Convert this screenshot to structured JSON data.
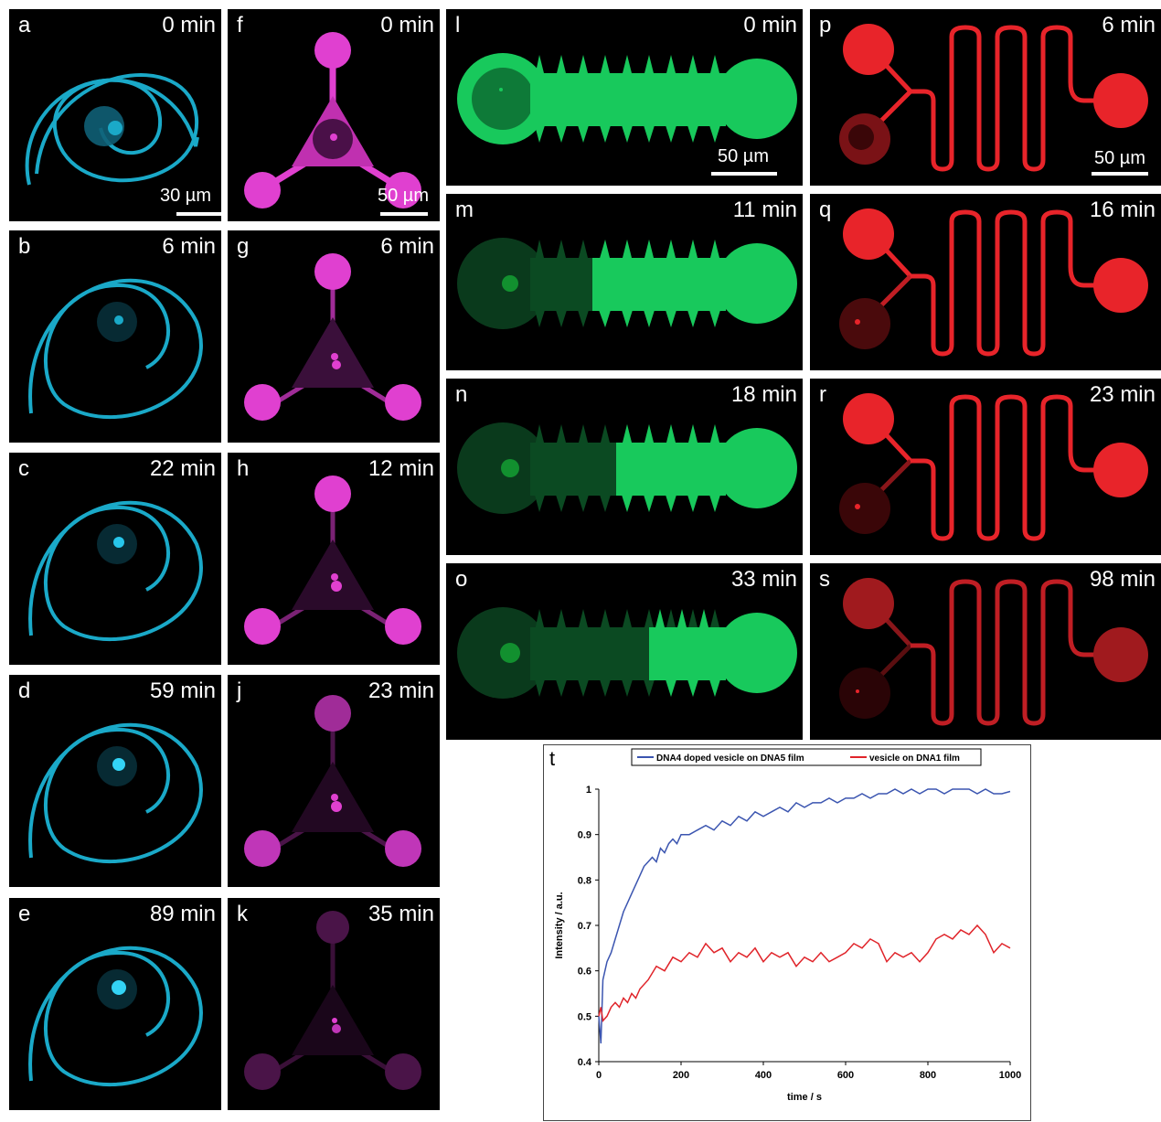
{
  "panels": {
    "a": {
      "label": "a",
      "time": "0 min",
      "scale": "30 µm"
    },
    "b": {
      "label": "b",
      "time": "6 min"
    },
    "c": {
      "label": "c",
      "time": "22 min"
    },
    "d": {
      "label": "d",
      "time": "59 min"
    },
    "e": {
      "label": "e",
      "time": "89 min"
    },
    "f": {
      "label": "f",
      "time": "0 min",
      "scale": "50 µm"
    },
    "g": {
      "label": "g",
      "time": "6 min"
    },
    "h": {
      "label": "h",
      "time": "12 min"
    },
    "j": {
      "label": "j",
      "time": "23 min"
    },
    "k": {
      "label": "k",
      "time": "35 min"
    },
    "l": {
      "label": "l",
      "time": "0 min",
      "scale": "50 µm"
    },
    "m": {
      "label": "m",
      "time": "11 min"
    },
    "n": {
      "label": "n",
      "time": "18 min"
    },
    "o": {
      "label": "o",
      "time": "33 min"
    },
    "p": {
      "label": "p",
      "time": "6 min",
      "scale": "50 µm"
    },
    "q": {
      "label": "q",
      "time": "16 min"
    },
    "r": {
      "label": "r",
      "time": "23 min"
    },
    "s": {
      "label": "s",
      "time": "98 min"
    }
  },
  "colors": {
    "cyan": "#1aa9c8",
    "magenta": "#e040d0",
    "green": "#18c95c",
    "red": "#e8242a",
    "blue_series": "#3b55b0",
    "red_series": "#e0242a"
  },
  "chart_data": {
    "type": "line",
    "panel_label": "t",
    "xlabel": "time / s",
    "ylabel": "Intensity / a.u.",
    "xlim": [
      0,
      1000
    ],
    "ylim": [
      0.4,
      1
    ],
    "xticks": [
      0,
      200,
      400,
      600,
      800,
      1000
    ],
    "yticks": [
      0.4,
      0.5,
      0.6,
      0.7,
      0.8,
      0.9,
      1
    ],
    "legend_position": "top",
    "series": [
      {
        "name": "DNA4 doped vesicle on DNA5 film",
        "color": "#3b55b0",
        "x": [
          0,
          5,
          10,
          20,
          30,
          40,
          50,
          60,
          70,
          80,
          90,
          100,
          110,
          120,
          130,
          140,
          150,
          160,
          170,
          180,
          190,
          200,
          220,
          240,
          260,
          280,
          300,
          320,
          340,
          360,
          380,
          400,
          420,
          440,
          460,
          480,
          500,
          520,
          540,
          560,
          580,
          600,
          620,
          640,
          660,
          680,
          700,
          720,
          740,
          760,
          780,
          800,
          820,
          840,
          860,
          880,
          900,
          920,
          940,
          960,
          980,
          1000
        ],
        "y": [
          0.5,
          0.44,
          0.58,
          0.62,
          0.64,
          0.67,
          0.7,
          0.73,
          0.75,
          0.77,
          0.79,
          0.81,
          0.83,
          0.84,
          0.85,
          0.84,
          0.87,
          0.86,
          0.88,
          0.89,
          0.88,
          0.9,
          0.9,
          0.91,
          0.92,
          0.91,
          0.93,
          0.92,
          0.94,
          0.93,
          0.95,
          0.94,
          0.95,
          0.96,
          0.95,
          0.97,
          0.96,
          0.97,
          0.97,
          0.98,
          0.97,
          0.98,
          0.98,
          0.99,
          0.98,
          0.99,
          0.99,
          1.0,
          0.99,
          1.0,
          0.99,
          1.0,
          1.0,
          0.99,
          1.0,
          1.0,
          1.0,
          0.99,
          1.0,
          0.99,
          0.99,
          0.995
        ]
      },
      {
        "name": "vesicle on DNA1 film",
        "color": "#e0242a",
        "x": [
          0,
          5,
          10,
          20,
          30,
          40,
          50,
          60,
          70,
          80,
          90,
          100,
          120,
          140,
          160,
          180,
          200,
          220,
          240,
          260,
          280,
          300,
          320,
          340,
          360,
          380,
          400,
          420,
          440,
          460,
          480,
          500,
          520,
          540,
          560,
          580,
          600,
          620,
          640,
          660,
          680,
          700,
          720,
          740,
          760,
          780,
          800,
          820,
          840,
          860,
          880,
          900,
          920,
          940,
          960,
          980,
          1000
        ],
        "y": [
          0.5,
          0.52,
          0.49,
          0.5,
          0.52,
          0.53,
          0.52,
          0.54,
          0.53,
          0.55,
          0.54,
          0.56,
          0.58,
          0.61,
          0.6,
          0.63,
          0.62,
          0.64,
          0.63,
          0.66,
          0.64,
          0.65,
          0.62,
          0.64,
          0.63,
          0.65,
          0.62,
          0.64,
          0.63,
          0.64,
          0.61,
          0.63,
          0.62,
          0.64,
          0.62,
          0.63,
          0.64,
          0.66,
          0.65,
          0.67,
          0.66,
          0.62,
          0.64,
          0.63,
          0.64,
          0.62,
          0.64,
          0.67,
          0.68,
          0.67,
          0.69,
          0.68,
          0.7,
          0.68,
          0.64,
          0.66,
          0.65
        ]
      }
    ]
  }
}
